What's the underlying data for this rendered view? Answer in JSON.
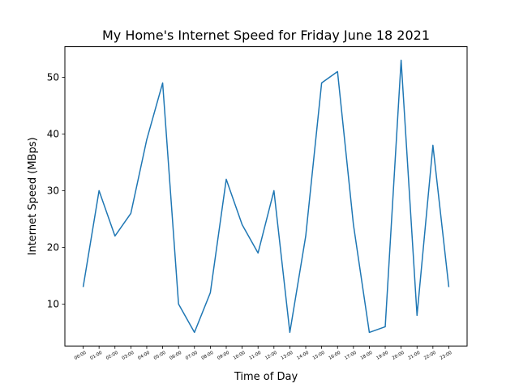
{
  "chart_data": {
    "type": "line",
    "title": "My Home's Internet Speed for Friday June 18 2021",
    "xlabel": "Time of Day",
    "ylabel": "Internet Speed (MBps)",
    "categories": [
      "00:00",
      "01:00",
      "02:00",
      "03:00",
      "04:00",
      "05:00",
      "06:00",
      "07:00",
      "08:00",
      "09:00",
      "10:00",
      "11:00",
      "12:00",
      "13:00",
      "14:00",
      "15:00",
      "16:00",
      "17:00",
      "18:00",
      "19:00",
      "20:00",
      "21:00",
      "22:00",
      "23:00"
    ],
    "series": [
      {
        "values": [
          13,
          30,
          22,
          26,
          39,
          49,
          10,
          5,
          12,
          32,
          24,
          19,
          30,
          5,
          22,
          49,
          51,
          24,
          5,
          6,
          53,
          8,
          38,
          13
        ]
      }
    ],
    "ylim": [
      2.6,
      55.4
    ],
    "yticks": [
      10,
      20,
      30,
      40,
      50
    ],
    "grid": false,
    "legend": "none",
    "line_color": "#1f77b4"
  }
}
